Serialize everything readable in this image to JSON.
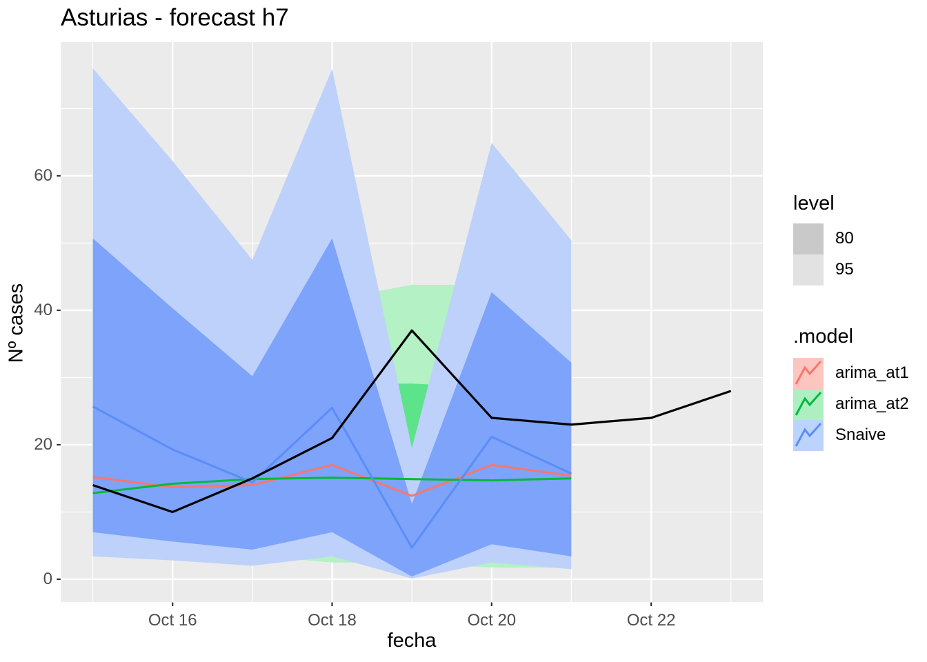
{
  "title": "Asturias - forecast h7",
  "axes": {
    "x": {
      "label": "fecha",
      "major_tick_labels": [
        "Oct 16",
        "Oct 18",
        "Oct 20",
        "Oct 22"
      ],
      "major_tick_days": [
        1,
        3,
        5,
        7
      ],
      "minor_tick_days": [
        0,
        2,
        4,
        6,
        8
      ]
    },
    "y": {
      "label": "Nº cases",
      "major_ticks": [
        0,
        20,
        40,
        60
      ],
      "minor_ticks": [
        10,
        30,
        50,
        70
      ],
      "range": [
        -3.39,
        79.9
      ]
    }
  },
  "legend": {
    "level": {
      "title": "level",
      "items": [
        {
          "label": "80",
          "fill": "#c9c9c9"
        },
        {
          "label": "95",
          "fill": "#e2e2e2"
        }
      ]
    },
    "model": {
      "title": ".model",
      "items": [
        {
          "label": "arima_at1",
          "fill": "#fbc5c0",
          "line": "#f8766d"
        },
        {
          "label": "arima_at2",
          "fill": "#aeefc2",
          "line": "#00ba38"
        },
        {
          "label": "Snaive",
          "fill": "#bcd4fd",
          "line": "#5b8df8"
        }
      ]
    }
  },
  "chart_data": {
    "type": "line",
    "title": "Asturias - forecast h7",
    "xlabel": "fecha",
    "ylabel": "Nº cases",
    "x": [
      "Oct 15",
      "Oct 16",
      "Oct 17",
      "Oct 18",
      "Oct 19",
      "Oct 20",
      "Oct 21",
      "Oct 22",
      "Oct 23"
    ],
    "grid": true,
    "legend_position": "right",
    "series": [
      {
        "name": "actual",
        "color": "#000000",
        "width": 3.2,
        "values": [
          14,
          10,
          15,
          21,
          37,
          24,
          23,
          24,
          28
        ]
      },
      {
        "name": "arima_at1",
        "color": "#f8766d",
        "width": 3,
        "values": [
          15.2,
          13.7,
          14,
          17,
          12.4,
          17,
          15.4,
          null,
          null
        ]
      },
      {
        "name": "arima_at2",
        "color": "#00ba38",
        "width": 3,
        "values": [
          12.8,
          14.2,
          14.9,
          15.1,
          14.9,
          14.7,
          15,
          null,
          null
        ]
      },
      {
        "name": "Snaive",
        "color": "#5b8df8",
        "width": 3,
        "values": [
          25.7,
          19.3,
          14.4,
          25.5,
          4.7,
          21.2,
          15.7,
          null,
          null
        ]
      }
    ],
    "ribbons": [
      {
        "name": "arima_at2",
        "level": 95,
        "fill": "#b4f1c5",
        "lo": [
          3.6,
          3.5,
          3.5,
          2.5,
          2.3,
          1.75,
          1.7
        ],
        "hi": [
          40,
          40,
          41,
          41.6,
          43.8,
          43.8,
          40
        ]
      },
      {
        "name": "arima_at2",
        "level": 80,
        "fill": "#5de389",
        "lo": [
          5,
          4.5,
          4,
          3.5,
          3,
          3.5,
          3
        ],
        "hi": [
          28,
          28,
          28.5,
          29,
          29.1,
          28.5,
          28
        ]
      },
      {
        "name": "Snaive",
        "level": 95,
        "fill": "#bdd1fa",
        "lo": [
          3.4,
          2.8,
          2.0,
          3.4,
          0.1,
          2.5,
          1.5
        ],
        "hi": [
          76.0,
          62.2,
          47.5,
          75.9,
          19.5,
          64.9,
          50.4
        ]
      },
      {
        "name": "Snaive",
        "level": 80,
        "fill": "#7da3fa",
        "lo": [
          7.0,
          5.6,
          4.4,
          7.0,
          0.4,
          5.2,
          3.4
        ],
        "hi": [
          50.7,
          40.3,
          30.2,
          50.7,
          11.2,
          42.7,
          32.2
        ]
      }
    ]
  },
  "colors": {
    "panel_background": "#ebebeb",
    "grid": "#ffffff",
    "tick_mark": "#333333",
    "tick_label": "#4d4d4d"
  }
}
